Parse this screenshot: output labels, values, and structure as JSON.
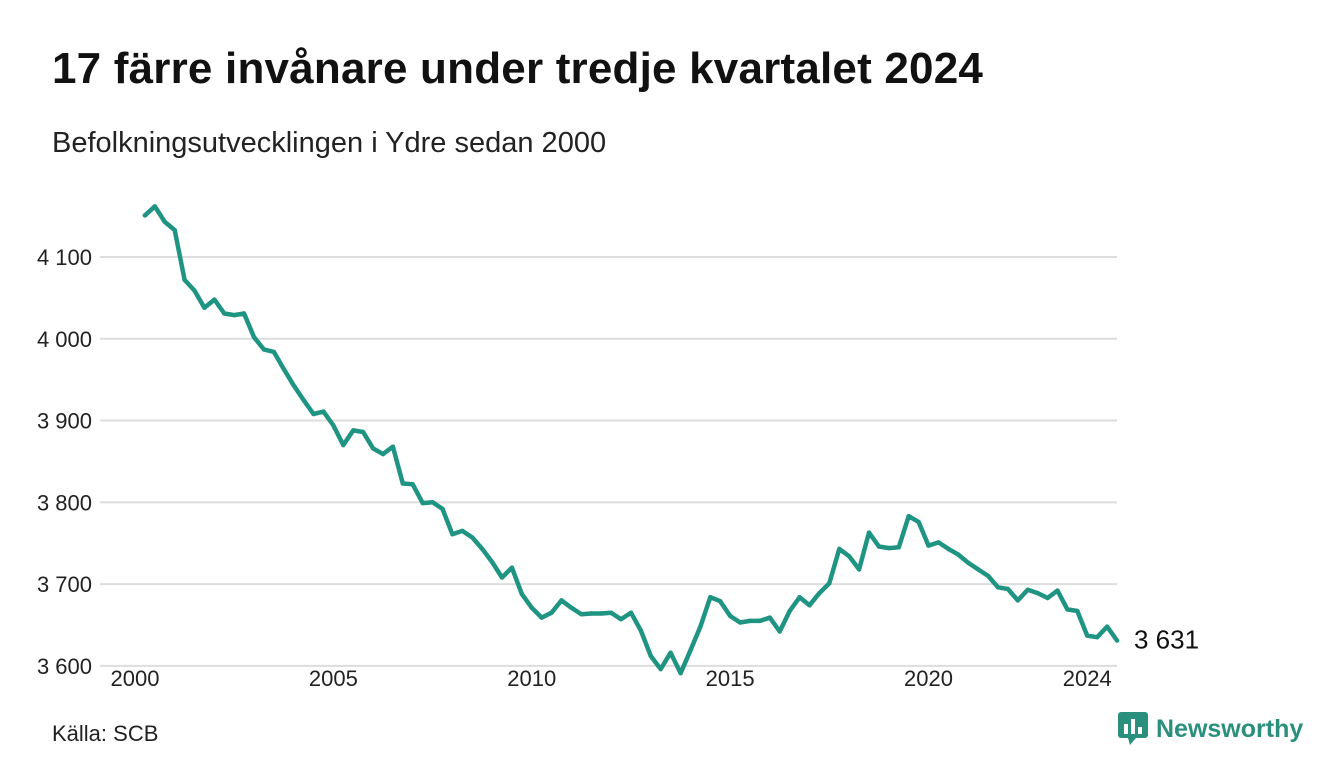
{
  "header": {
    "title": "17 färre invånare under tredje kvartalet 2024",
    "subtitle": "Befolkningsutvecklingen i Ydre sedan 2000"
  },
  "footer": {
    "source": "Källa: SCB",
    "brand": "Newsworthy"
  },
  "colors": {
    "line": "#1f9483",
    "grid": "#dddddd",
    "brand": "#2a8f7c"
  },
  "chart_data": {
    "type": "line",
    "grid": true,
    "ylim": [
      3590,
      4160
    ],
    "xlim": [
      2000,
      2024.75
    ],
    "x_ticks": [
      2000,
      2005,
      2010,
      2015,
      2020,
      2024
    ],
    "x_tick_labels": [
      "2000",
      "2005",
      "2010",
      "2015",
      "2020",
      "2024"
    ],
    "y_ticks": [
      3600,
      3700,
      3800,
      3900,
      4000,
      4100
    ],
    "y_tick_labels": [
      "3 600",
      "3 700",
      "3 800",
      "3 900",
      "4 000",
      "4 100"
    ],
    "end_label": "3 631",
    "series": [
      {
        "x_start": 2000.25,
        "step": 0.25,
        "values": [
          4151,
          4162,
          4143,
          4133,
          4072,
          4059,
          4038,
          4048,
          4031,
          4029,
          4031,
          4002,
          3987,
          3984,
          3963,
          3943,
          3925,
          3908,
          3911,
          3894,
          3870,
          3888,
          3886,
          3866,
          3859,
          3868,
          3823,
          3822,
          3799,
          3800,
          3792,
          3761,
          3765,
          3757,
          3743,
          3727,
          3708,
          3720,
          3688,
          3671,
          3659,
          3665,
          3680,
          3671,
          3663,
          3664,
          3664,
          3665,
          3657,
          3665,
          3643,
          3612,
          3596,
          3616,
          3591,
          3619,
          3648,
          3684,
          3679,
          3661,
          3653,
          3655,
          3655,
          3659,
          3642,
          3667,
          3684,
          3674,
          3689,
          3701,
          3743,
          3734,
          3718,
          3763,
          3746,
          3744,
          3745,
          3783,
          3776,
          3747,
          3751,
          3743,
          3736,
          3726,
          3718,
          3710,
          3696,
          3694,
          3680,
          3693,
          3689,
          3683,
          3692,
          3669,
          3667,
          3637,
          3635,
          3648,
          3631
        ]
      }
    ]
  }
}
